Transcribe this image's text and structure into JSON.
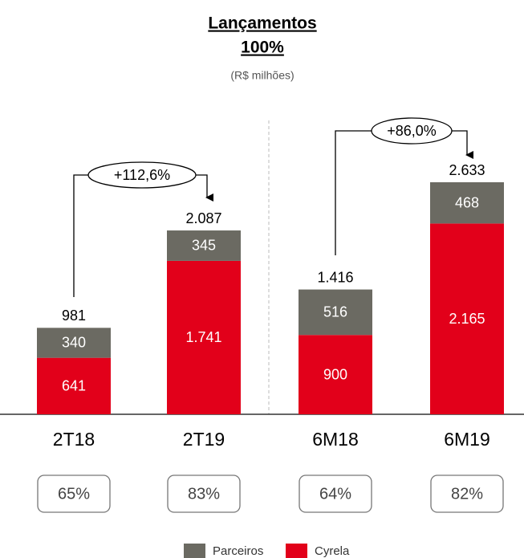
{
  "chart_data": {
    "type": "stacked-bar",
    "title": "Lançamentos",
    "subtitle": "100%",
    "note": "(R$ milhões)",
    "categories": [
      "2T18",
      "2T19",
      "6M18",
      "6M19"
    ],
    "series": [
      {
        "name": "Cyrela",
        "color": "#e2001a",
        "values": [
          641,
          1741,
          900,
          2165
        ],
        "value_labels": [
          "641",
          "1.741",
          "900",
          "2.165"
        ]
      },
      {
        "name": "Parceiros",
        "color": "#6b6a62",
        "values": [
          340,
          345,
          516,
          468
        ],
        "value_labels": [
          "340",
          "345",
          "516",
          "468"
        ]
      }
    ],
    "totals": {
      "values": [
        981,
        2087,
        1416,
        2633
      ],
      "value_labels": [
        "981",
        "2.087",
        "1.416",
        "2.633"
      ]
    },
    "growth_labels": [
      "+112,6%",
      "+86,0%"
    ],
    "share_labels": [
      "65%",
      "83%",
      "64%",
      "82%"
    ]
  }
}
